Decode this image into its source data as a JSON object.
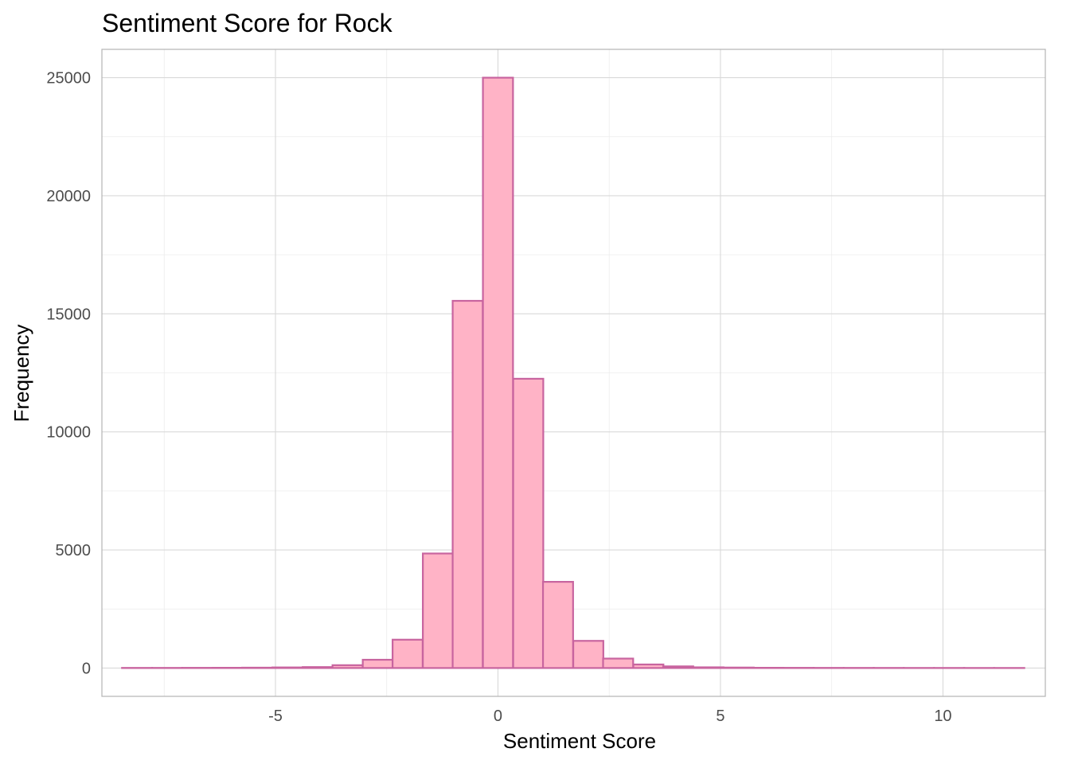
{
  "chart_data": {
    "type": "bar",
    "title": "Sentiment Score for Rock",
    "xlabel": "Sentiment Score",
    "ylabel": "Frequency",
    "xlim": [
      -8.9,
      12.3
    ],
    "ylim": [
      -1200,
      26200
    ],
    "x_ticks": [
      -5,
      0,
      5,
      10
    ],
    "x_tick_labels": [
      "-5",
      "0",
      "5",
      "10"
    ],
    "x_minor_ticks": [
      -7.5,
      -2.5,
      2.5,
      7.5,
      12.5
    ],
    "y_ticks": [
      0,
      5000,
      10000,
      15000,
      20000,
      25000
    ],
    "y_tick_labels": [
      "0",
      "5000",
      "10000",
      "15000",
      "20000",
      "25000"
    ],
    "y_minor_ticks": [
      2500,
      7500,
      12500,
      17500,
      22500
    ],
    "bins": {
      "width": 0.676,
      "centers": [
        -8.11,
        -7.43,
        -6.76,
        -6.08,
        -5.41,
        -4.73,
        -4.05,
        -3.38,
        -2.7,
        -2.03,
        -1.35,
        -0.68,
        0.0,
        0.68,
        1.35,
        2.03,
        2.7,
        3.38,
        4.05,
        4.73,
        5.41,
        6.08,
        6.76,
        7.43,
        8.11,
        8.78,
        9.46,
        10.14,
        10.81,
        11.49
      ],
      "values": [
        5,
        5,
        8,
        10,
        15,
        25,
        40,
        120,
        350,
        1200,
        4850,
        15550,
        25000,
        12250,
        3650,
        1150,
        400,
        150,
        70,
        30,
        20,
        10,
        8,
        6,
        5,
        4,
        3,
        3,
        2,
        2
      ]
    },
    "colors": {
      "fill": "#ffb3c6",
      "stroke": "#c8649f",
      "grid": "#d9d9d9",
      "panel_border": "#b3b3b3"
    },
    "grid": true,
    "legend": "none"
  }
}
